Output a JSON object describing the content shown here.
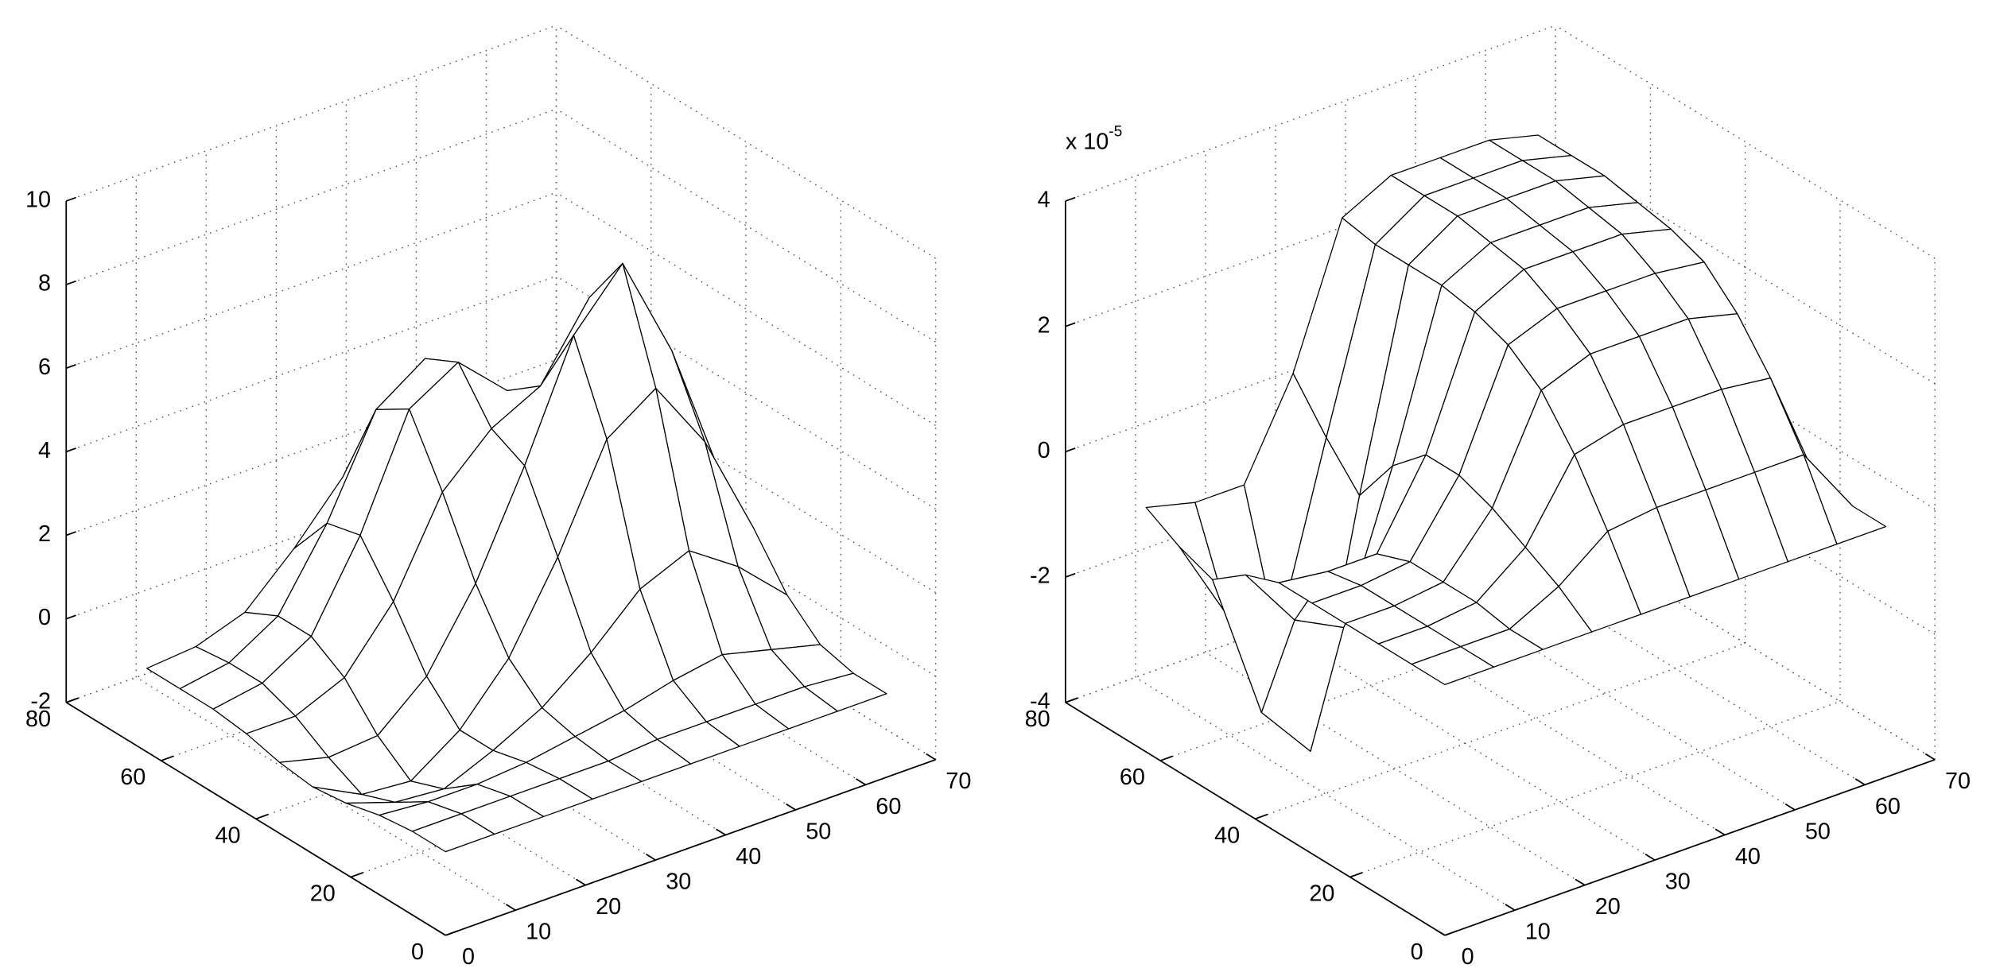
{
  "chart_data": [
    {
      "type": "surface",
      "color": "#000000",
      "face_color": "#ffffff",
      "grid": true,
      "x": [
        0,
        7,
        14,
        21,
        28,
        35,
        42,
        49,
        56,
        63
      ],
      "y": [
        0,
        7,
        14,
        21,
        28,
        35,
        42,
        49,
        56,
        63
      ],
      "z": [
        [
          0,
          0,
          0,
          0,
          0,
          0,
          0,
          0,
          0,
          0
        ],
        [
          0,
          0,
          0,
          0,
          0,
          0.1,
          0.1,
          0.1,
          0.1,
          0
        ],
        [
          -0.1,
          -0.2,
          -0.2,
          -0.1,
          0.1,
          0.3,
          0.6,
          0.8,
          0.5,
          0.2
        ],
        [
          -0.3,
          -0.7,
          -0.8,
          -0.3,
          0.3,
          1.2,
          2.3,
          2.8,
          2.0,
          0.9
        ],
        [
          -0.4,
          -1.0,
          -1.1,
          -0.3,
          1.0,
          3.0,
          5.4,
          6.2,
          4.5,
          2.0
        ],
        [
          -0.3,
          -0.6,
          -0.5,
          0.5,
          2.3,
          4.7,
          7.4,
          8.7,
          6.2,
          2.8
        ],
        [
          -0.1,
          -0.1,
          0.4,
          1.8,
          4.0,
          5.1,
          5.7,
          7.4,
          5.4,
          2.3
        ],
        [
          0,
          0.2,
          0.9,
          2.9,
          5.5,
          6.2,
          5.1,
          4.8,
          3.0,
          1.3
        ],
        [
          0,
          0.2,
          0.9,
          2.7,
          5.0,
          5.8,
          4.5,
          2.6,
          1.2,
          0.4
        ],
        [
          0,
          0.1,
          0.5,
          1.6,
          2.9,
          3.3,
          2.4,
          1.1,
          0.4,
          0.1
        ]
      ],
      "xlim": [
        0,
        70
      ],
      "xticks": [
        0,
        10,
        20,
        30,
        40,
        50,
        60,
        70
      ],
      "ylim": [
        0,
        80
      ],
      "yticks": [
        0,
        20,
        40,
        60,
        80
      ],
      "zlim": [
        -2,
        10
      ],
      "zticks": [
        -2,
        0,
        2,
        4,
        6,
        8,
        10
      ]
    },
    {
      "type": "surface",
      "color": "#000000",
      "face_color": "#ffffff",
      "grid": true,
      "multiplier_label": "x 10",
      "multiplier_exponent": "-5",
      "x": [
        0,
        7,
        14,
        21,
        28,
        35,
        42,
        49,
        56,
        63
      ],
      "y": [
        0,
        7,
        14,
        21,
        28,
        35,
        42,
        49,
        56,
        63
      ],
      "z": [
        [
          0,
          0,
          0,
          0,
          0,
          0,
          0,
          0,
          0,
          0
        ],
        [
          0,
          0,
          0,
          0.4,
          1.0,
          1.1,
          1.1,
          1.1,
          1.1,
          0
        ],
        [
          0,
          0,
          0.1,
          0.7,
          1.9,
          2.1,
          2.1,
          2.1,
          2.0,
          0
        ],
        [
          0,
          0,
          0.1,
          1.0,
          2.6,
          2.9,
          2.9,
          2.9,
          2.7,
          0
        ],
        [
          0,
          0,
          0.1,
          1.2,
          3.0,
          3.3,
          3.3,
          3.3,
          3.2,
          0
        ],
        [
          0,
          -0.1,
          -0.1,
          1.2,
          3.2,
          3.6,
          3.6,
          3.6,
          3.4,
          0
        ],
        [
          -0.2,
          -1.2,
          -1.6,
          0.7,
          3.3,
          3.7,
          3.7,
          3.7,
          3.5,
          0
        ],
        [
          -0.6,
          -3.0,
          -3.9,
          -0.1,
          3.3,
          3.8,
          3.8,
          3.8,
          3.6,
          0
        ],
        [
          -0.4,
          -1.8,
          -2.4,
          0.5,
          3.3,
          3.8,
          3.8,
          3.8,
          3.6,
          0
        ],
        [
          -0.1,
          -0.3,
          -0.3,
          1.2,
          3.4,
          3.8,
          3.8,
          3.8,
          3.6,
          0
        ]
      ],
      "xlim": [
        0,
        70
      ],
      "xticks": [
        0,
        10,
        20,
        30,
        40,
        50,
        60,
        70
      ],
      "ylim": [
        0,
        80
      ],
      "yticks": [
        0,
        20,
        40,
        60,
        80
      ],
      "zlim": [
        -4,
        4
      ],
      "zticks": [
        -4,
        -2,
        0,
        2,
        4
      ]
    }
  ]
}
